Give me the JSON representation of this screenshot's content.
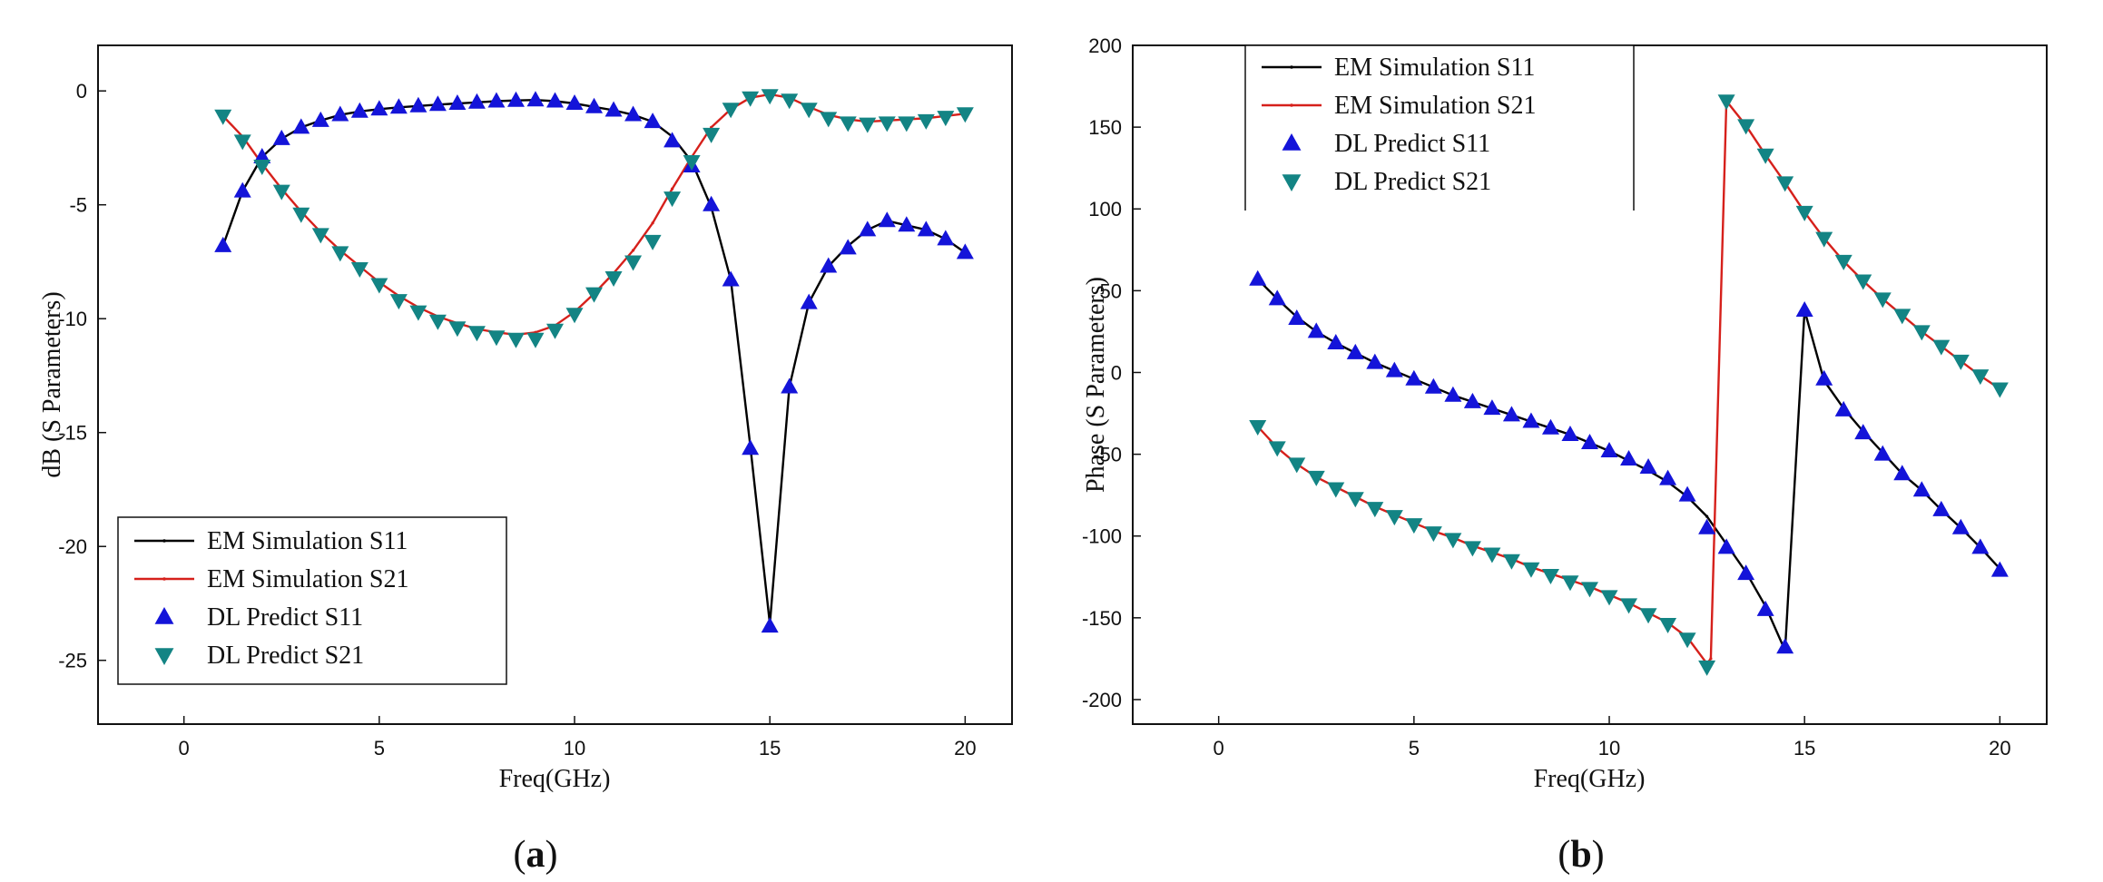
{
  "chart_data": [
    {
      "type": "line",
      "panel": "a",
      "caption_letter": "a",
      "xlabel": "Freq(GHz)",
      "ylabel": "dB (S Parameters)",
      "xlim": [
        -2.2,
        21.2
      ],
      "ylim": [
        -27.8,
        2
      ],
      "xticks": [
        0,
        5,
        10,
        15,
        20
      ],
      "yticks": [
        0,
        -5,
        -10,
        -15,
        -20,
        -25
      ],
      "legend_position": "bottom-left",
      "series": [
        {
          "name": "EM Simulation S11",
          "kind": "line",
          "color": "#000000",
          "x": [
            1,
            1.5,
            2,
            2.5,
            3,
            3.5,
            4,
            4.5,
            5,
            5.5,
            6,
            6.5,
            7,
            7.5,
            8,
            8.5,
            9,
            9.5,
            10,
            10.5,
            11,
            11.5,
            12,
            12.5,
            13,
            13.5,
            14,
            14.5,
            15,
            15.5,
            16,
            16.5,
            17,
            17.5,
            18,
            18.5,
            19,
            19.5,
            20
          ],
          "y": [
            -6.8,
            -4.4,
            -2.9,
            -2.1,
            -1.6,
            -1.3,
            -1.05,
            -0.9,
            -0.8,
            -0.72,
            -0.66,
            -0.6,
            -0.55,
            -0.5,
            -0.45,
            -0.42,
            -0.4,
            -0.45,
            -0.55,
            -0.7,
            -0.85,
            -1.05,
            -1.35,
            -2.0,
            -3.1,
            -5.1,
            -8.3,
            -15.6,
            -23.4,
            -13.0,
            -9.3,
            -7.7,
            -6.8,
            -6.1,
            -5.7,
            -5.9,
            -6.1,
            -6.5,
            -7.1
          ]
        },
        {
          "name": "EM Simulation S21",
          "kind": "line",
          "color": "#d6201b",
          "x": [
            1,
            1.5,
            2,
            2.5,
            3,
            3.5,
            4,
            4.5,
            5,
            5.5,
            6,
            6.5,
            7,
            7.5,
            8,
            8.5,
            9,
            9.5,
            10,
            10.5,
            11,
            11.5,
            12,
            12.5,
            13,
            13.5,
            14,
            14.5,
            15,
            15.5,
            16,
            16.5,
            17,
            17.5,
            18,
            18.5,
            19,
            19.5,
            20
          ],
          "y": [
            -1.1,
            -2.0,
            -3.2,
            -4.3,
            -5.3,
            -6.2,
            -7.0,
            -7.7,
            -8.4,
            -9.0,
            -9.5,
            -9.9,
            -10.2,
            -10.45,
            -10.6,
            -10.7,
            -10.6,
            -10.3,
            -9.7,
            -8.9,
            -8.0,
            -7.0,
            -5.8,
            -4.3,
            -2.9,
            -1.6,
            -0.8,
            -0.3,
            -0.15,
            -0.3,
            -0.7,
            -1.05,
            -1.25,
            -1.35,
            -1.3,
            -1.25,
            -1.2,
            -1.1,
            -1.0
          ]
        },
        {
          "name": "DL Predict S11",
          "kind": "marker",
          "marker": "triangle-up",
          "color": "#1414d9",
          "x": [
            1,
            1.5,
            2,
            2.5,
            3,
            3.5,
            4,
            4.5,
            5,
            5.5,
            6,
            6.5,
            7,
            7.5,
            8,
            8.5,
            9,
            9.5,
            10,
            10.5,
            11,
            11.5,
            12,
            12.5,
            13,
            13.5,
            14,
            14.5,
            15,
            15.5,
            16,
            16.5,
            17,
            17.5,
            18,
            18.5,
            19,
            19.5,
            20
          ],
          "y": [
            -6.8,
            -4.4,
            -2.9,
            -2.1,
            -1.6,
            -1.3,
            -1.05,
            -0.9,
            -0.8,
            -0.72,
            -0.66,
            -0.6,
            -0.55,
            -0.5,
            -0.45,
            -0.42,
            -0.4,
            -0.45,
            -0.55,
            -0.7,
            -0.85,
            -1.05,
            -1.35,
            -2.2,
            -3.3,
            -5.0,
            -8.3,
            -15.7,
            -23.5,
            -13.0,
            -9.3,
            -7.7,
            -6.9,
            -6.1,
            -5.7,
            -5.9,
            -6.1,
            -6.5,
            -7.1
          ]
        },
        {
          "name": "DL Predict S21",
          "kind": "marker",
          "marker": "triangle-down",
          "color": "#138484",
          "x": [
            1,
            1.5,
            2,
            2.5,
            3,
            3.5,
            4,
            4.5,
            5,
            5.5,
            6,
            6.5,
            7,
            7.5,
            8,
            8.5,
            9,
            9.5,
            10,
            10.5,
            11,
            11.5,
            12,
            12.5,
            13,
            13.5,
            14,
            14.5,
            15,
            15.5,
            16,
            16.5,
            17,
            17.5,
            18,
            18.5,
            19,
            19.5,
            20
          ],
          "y": [
            -1.1,
            -2.2,
            -3.3,
            -4.4,
            -5.4,
            -6.3,
            -7.1,
            -7.8,
            -8.5,
            -9.2,
            -9.7,
            -10.1,
            -10.4,
            -10.6,
            -10.8,
            -10.9,
            -10.9,
            -10.5,
            -9.8,
            -8.9,
            -8.2,
            -7.5,
            -6.6,
            -4.7,
            -3.1,
            -1.9,
            -0.8,
            -0.3,
            -0.2,
            -0.4,
            -0.8,
            -1.2,
            -1.4,
            -1.45,
            -1.4,
            -1.4,
            -1.3,
            -1.15,
            -1.0
          ]
        }
      ]
    },
    {
      "type": "line",
      "panel": "b",
      "caption_letter": "b",
      "xlabel": "Freq(GHz)",
      "ylabel": "Phase (S Parameters)",
      "xlim": [
        -2.2,
        21.2
      ],
      "ylim": [
        -215,
        200
      ],
      "xticks": [
        0,
        5,
        10,
        15,
        20
      ],
      "yticks": [
        200,
        150,
        100,
        50,
        0,
        -50,
        -100,
        -150,
        -200
      ],
      "legend_position": "top-left",
      "series": [
        {
          "name": "EM Simulation S11",
          "kind": "line",
          "color": "#000000",
          "x": [
            1,
            1.5,
            2,
            2.5,
            3,
            3.5,
            4,
            4.5,
            5,
            5.5,
            6,
            6.5,
            7,
            7.5,
            8,
            8.5,
            9,
            9.5,
            10,
            10.5,
            11,
            11.5,
            12,
            12.5,
            13,
            13.5,
            14,
            14.5,
            15,
            15.5,
            16,
            16.5,
            17,
            17.5,
            18,
            18.5,
            19,
            19.5,
            20
          ],
          "y": [
            57,
            45,
            34,
            25,
            18,
            12,
            6,
            1,
            -4,
            -9,
            -14,
            -18,
            -22,
            -26,
            -30,
            -34,
            -38,
            -43,
            -48,
            -54,
            -60,
            -67,
            -76,
            -88,
            -105,
            -122,
            -143,
            -170,
            38,
            -5,
            -22,
            -36,
            -49,
            -62,
            -72,
            -84,
            -95,
            -107,
            -120
          ]
        },
        {
          "name": "EM Simulation S21",
          "kind": "line",
          "color": "#d6201b",
          "x": [
            1,
            1.5,
            2,
            2.5,
            3,
            3.5,
            4,
            4.5,
            5,
            5.5,
            6,
            6.5,
            7,
            7.5,
            8,
            8.5,
            9,
            9.5,
            10,
            10.5,
            11,
            11.5,
            12,
            12.5,
            12.6,
            13,
            13.5,
            14,
            14.5,
            15,
            15.5,
            16,
            16.5,
            17,
            17.5,
            18,
            18.5,
            19,
            19.5,
            20
          ],
          "y": [
            -33,
            -46,
            -56,
            -64,
            -70,
            -76,
            -82,
            -87,
            -92,
            -97,
            -101,
            -106,
            -110,
            -114,
            -119,
            -123,
            -127,
            -131,
            -136,
            -141,
            -147,
            -153,
            -162,
            -178,
            -175,
            166,
            151,
            133,
            116,
            98,
            82,
            68,
            56,
            45,
            35,
            25,
            16,
            7,
            -2,
            -10
          ]
        },
        {
          "name": "DL Predict S11",
          "kind": "marker",
          "marker": "triangle-up",
          "color": "#1414d9",
          "x": [
            1,
            1.5,
            2,
            2.5,
            3,
            3.5,
            4,
            4.5,
            5,
            5.5,
            6,
            6.5,
            7,
            7.5,
            8,
            8.5,
            9,
            9.5,
            10,
            10.5,
            11,
            11.5,
            12,
            12.5,
            13,
            13.5,
            14,
            14.5,
            15,
            15.5,
            16,
            16.5,
            17,
            17.5,
            18,
            18.5,
            19,
            19.5,
            20
          ],
          "y": [
            57,
            45,
            33,
            25,
            18,
            12,
            6,
            1,
            -4,
            -9,
            -14,
            -18,
            -22,
            -26,
            -30,
            -34,
            -38,
            -43,
            -48,
            -53,
            -58,
            -65,
            -75,
            -95,
            -107,
            -123,
            -145,
            -168,
            38,
            -4,
            -23,
            -37,
            -50,
            -62,
            -72,
            -84,
            -95,
            -107,
            -121
          ]
        },
        {
          "name": "DL Predict S21",
          "kind": "marker",
          "marker": "triangle-down",
          "color": "#138484",
          "x": [
            1,
            1.5,
            2,
            2.5,
            3,
            3.5,
            4,
            4.5,
            5,
            5.5,
            6,
            6.5,
            7,
            7.5,
            8,
            8.5,
            9,
            9.5,
            10,
            10.5,
            11,
            11.5,
            12,
            12.5,
            13,
            13.5,
            14,
            14.5,
            15,
            15.5,
            16,
            16.5,
            17,
            17.5,
            18,
            18.5,
            19,
            19.5,
            20
          ],
          "y": [
            -33,
            -46,
            -56,
            -64,
            -71,
            -77,
            -83,
            -88,
            -93,
            -98,
            -102,
            -107,
            -111,
            -115,
            -120,
            -124,
            -128,
            -132,
            -137,
            -142,
            -148,
            -154,
            -163,
            -180,
            166,
            151,
            133,
            116,
            98,
            82,
            68,
            56,
            45,
            35,
            25,
            16,
            7,
            -2,
            -10
          ]
        }
      ]
    }
  ]
}
